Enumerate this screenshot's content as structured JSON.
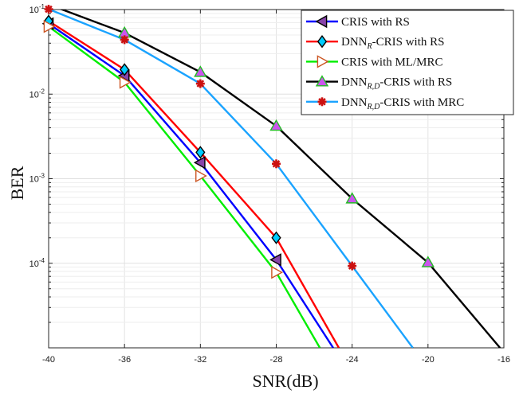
{
  "chart_data": {
    "type": "line",
    "xlabel": "SNR(dB)",
    "ylabel": "BER",
    "xlim": [
      -40,
      -16
    ],
    "ylim": [
      1e-05,
      0.1
    ],
    "y_scale": "log",
    "grid": true,
    "legend_position": "top-right",
    "x_ticks": [
      -40,
      -36,
      -32,
      -28,
      -24,
      -20,
      -16
    ],
    "y_ticks": [
      {
        "value": 0.1,
        "base": "10",
        "exp": "-1"
      },
      {
        "value": 0.01,
        "base": "10",
        "exp": "-2"
      },
      {
        "value": 0.001,
        "base": "10",
        "exp": "-3"
      },
      {
        "value": 0.0001,
        "base": "10",
        "exp": "-4"
      }
    ],
    "series": [
      {
        "name": "CRIS with RS",
        "legend_main": "CRIS with RS",
        "legend_sub": "",
        "legend_tail": "",
        "color": "#0000ff",
        "marker": "triangle-left",
        "marker_fill": "#8844aa",
        "x": [
          -40,
          -36,
          -32,
          -28,
          -25
        ],
        "y": [
          0.068,
          0.0165,
          0.00155,
          0.00011,
          1e-05
        ],
        "markers_at": [
          -40,
          -36,
          -32,
          -28
        ]
      },
      {
        "name": "DNN_R-CRIS with RS",
        "legend_main": "DNN",
        "legend_sub": "R",
        "legend_tail": "-CRIS with RS",
        "color": "#ff0000",
        "marker": "diamond",
        "marker_fill": "#00ccff",
        "x": [
          -40,
          -36,
          -32,
          -28,
          -24.7
        ],
        "y": [
          0.073,
          0.0195,
          0.00205,
          0.0002,
          1e-05
        ],
        "markers_at": [
          -40,
          -36,
          -32,
          -28
        ]
      },
      {
        "name": "CRIS with ML/MRC",
        "legend_main": "CRIS with ML/MRC",
        "legend_sub": "",
        "legend_tail": "",
        "color": "#00ee00",
        "marker": "triangle-right",
        "marker_fill": "#ffffff",
        "x": [
          -40,
          -36,
          -32,
          -28,
          -25.7
        ],
        "y": [
          0.063,
          0.0138,
          0.00108,
          7.8e-05,
          1e-05
        ],
        "markers_at": [
          -40,
          -36,
          -32,
          -28
        ]
      },
      {
        "name": "DNN_R,D-CRIS with RS",
        "legend_main": "DNN",
        "legend_sub": "R,D",
        "legend_tail": "-CRIS with RS",
        "color": "#000000",
        "marker": "triangle-up",
        "marker_fill": "#cc55ee",
        "x": [
          -40,
          -36,
          -32,
          -28,
          -24,
          -20,
          -16.2
        ],
        "y": [
          0.115,
          0.053,
          0.0182,
          0.0042,
          0.00058,
          0.000102,
          1e-05
        ],
        "markers_at": [
          -36,
          -32,
          -28,
          -24,
          -20
        ]
      },
      {
        "name": "DNN_R,D-CRIS with MRC",
        "legend_main": "DNN",
        "legend_sub": "R,D",
        "legend_tail": "-CRIS with MRC",
        "color": "#1aa3ff",
        "marker": "asterisk",
        "marker_fill": "#cc1111",
        "x": [
          -40,
          -36,
          -32,
          -28,
          -24,
          -20.8
        ],
        "y": [
          0.101,
          0.044,
          0.0133,
          0.0015,
          9.3e-05,
          1e-05
        ],
        "markers_at": [
          -40,
          -36,
          -32,
          -28,
          -24
        ]
      }
    ]
  }
}
